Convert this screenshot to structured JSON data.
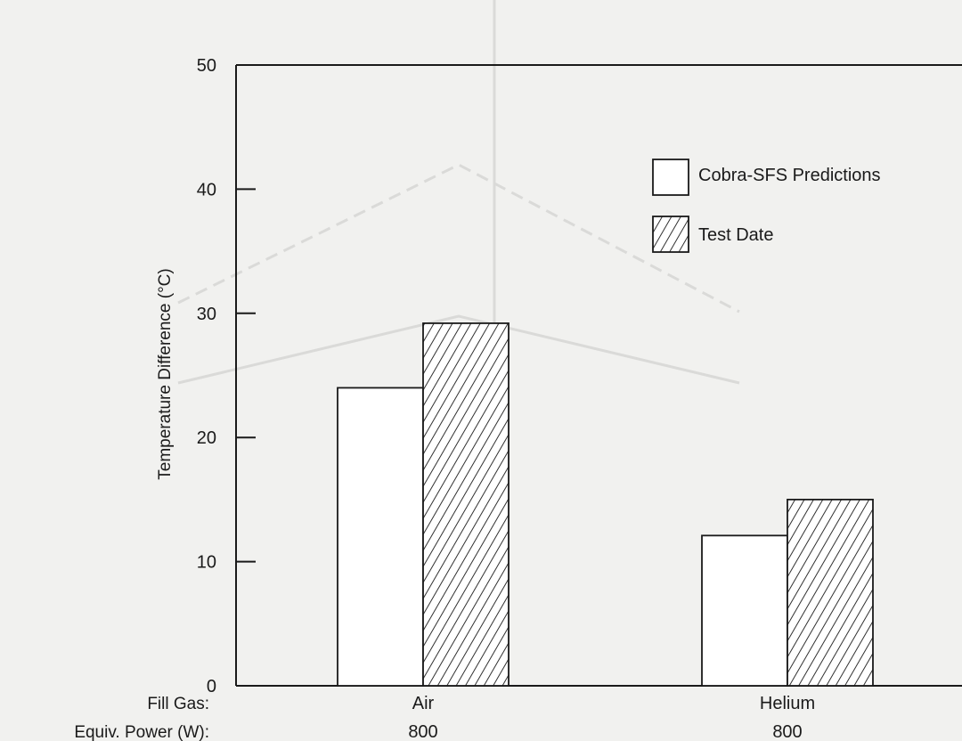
{
  "chart_data": {
    "type": "bar",
    "ylabel": "Temperature Difference (°C)",
    "ylim": [
      0,
      50
    ],
    "yticks": [
      0,
      10,
      20,
      30,
      40,
      50
    ],
    "row_labels": [
      "Fill Gas:",
      "Equiv. Power (W):"
    ],
    "categories": [
      {
        "fill_gas": "Air",
        "power": "800"
      },
      {
        "fill_gas": "Helium",
        "power": "800"
      }
    ],
    "series": [
      {
        "name": "Cobra-SFS Predictions",
        "style": "open",
        "values": [
          24,
          12.1
        ]
      },
      {
        "name": "Test Date",
        "style": "hatched",
        "values": [
          29.2,
          15
        ]
      }
    ],
    "legend_position": "top-right",
    "colors": {
      "ink": "#1a1a1a",
      "paper": "#f1f1ef",
      "bar_fill": "#ffffff"
    }
  }
}
